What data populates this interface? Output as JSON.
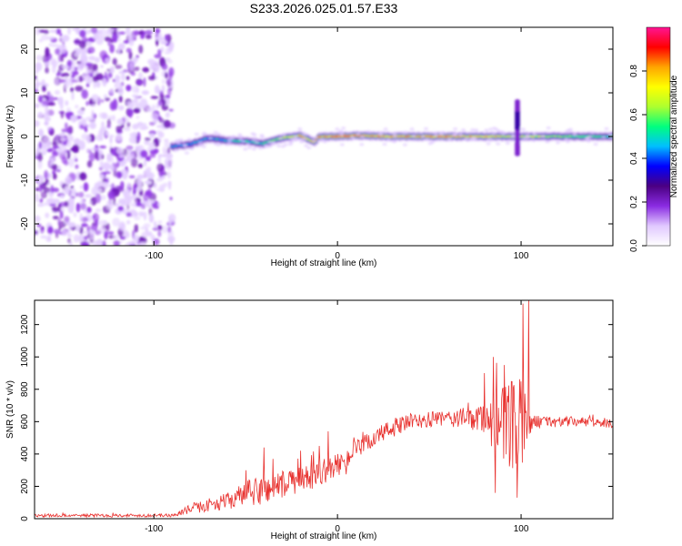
{
  "figure": {
    "title": "S233.2026.025.01.57.E33"
  },
  "chart_data": [
    {
      "type": "heatmap",
      "xlabel": "Height of straight line (km)",
      "ylabel": "Frequency (Hz)",
      "xlim": [
        -165,
        150
      ],
      "ylim": [
        -25,
        25
      ],
      "xticks": [
        -100,
        0,
        100
      ],
      "yticks": [
        -20,
        -10,
        0,
        10,
        20
      ],
      "colorbar": {
        "label": "Normalized spectral amplitude",
        "range": [
          0,
          1
        ],
        "ticks": [
          "0.0",
          "0.2",
          "0.4",
          "0.6",
          "0.8"
        ],
        "colors": [
          "#ffffff",
          "#e0c8ff",
          "#8a2be2",
          "#4b0082",
          "#0000ff",
          "#00bfff",
          "#00ff7f",
          "#adff2f",
          "#ffff00",
          "#ffa500",
          "#ff0000",
          "#ff1493"
        ]
      },
      "noise_region": {
        "x": [
          -165,
          -90
        ],
        "freq": [
          -25,
          25
        ],
        "amplitude": 0.15
      },
      "ridge": [
        {
          "x": -90,
          "freq": -2.3
        },
        {
          "x": -80,
          "freq": -1.8
        },
        {
          "x": -70,
          "freq": -0.4
        },
        {
          "x": -60,
          "freq": -0.9
        },
        {
          "x": -50,
          "freq": -1.1
        },
        {
          "x": -40,
          "freq": -1.6
        },
        {
          "x": -30,
          "freq": -0.4
        },
        {
          "x": -20,
          "freq": 0.2
        },
        {
          "x": -12,
          "freq": -1.3
        },
        {
          "x": -10,
          "freq": -0.1
        },
        {
          "x": 0,
          "freq": 0.0
        },
        {
          "x": 10,
          "freq": 0.2
        },
        {
          "x": 30,
          "freq": 0.0
        },
        {
          "x": 50,
          "freq": 0.0
        },
        {
          "x": 70,
          "freq": 0.0
        },
        {
          "x": 90,
          "freq": 0.0
        },
        {
          "x": 100,
          "freq": 0.0
        },
        {
          "x": 120,
          "freq": 0.0
        },
        {
          "x": 150,
          "freq": 0.0
        }
      ],
      "ridge_amplitude": [
        {
          "x": -90,
          "value": 0.45
        },
        {
          "x": -60,
          "value": 0.5
        },
        {
          "x": -40,
          "value": 0.55
        },
        {
          "x": -20,
          "value": 0.8
        },
        {
          "x": 0,
          "value": 0.9
        },
        {
          "x": 30,
          "value": 0.85
        },
        {
          "x": 60,
          "value": 0.85
        },
        {
          "x": 100,
          "value": 0.75
        },
        {
          "x": 130,
          "value": 0.6
        },
        {
          "x": 150,
          "value": 0.55
        }
      ],
      "burst": {
        "x": 98,
        "freq": 8,
        "amplitude": 0.3
      }
    },
    {
      "type": "line",
      "xlabel": "Height of straight line (km)",
      "ylabel": "SNR (10 * v/v)",
      "xlim": [
        -165,
        150
      ],
      "ylim": [
        0,
        1350
      ],
      "xticks": [
        -100,
        0,
        100
      ],
      "yticks": [
        0,
        200,
        400,
        600,
        800,
        1000,
        1200
      ],
      "series": [
        {
          "color": "#e8322f",
          "envelope": [
            {
              "x": -165,
              "y": 20,
              "amp": 10
            },
            {
              "x": -90,
              "y": 20,
              "amp": 10
            },
            {
              "x": -80,
              "y": 60,
              "amp": 30
            },
            {
              "x": -60,
              "y": 110,
              "amp": 50
            },
            {
              "x": -50,
              "y": 150,
              "amp": 80
            },
            {
              "x": -40,
              "y": 180,
              "amp": 100
            },
            {
              "x": -30,
              "y": 210,
              "amp": 90
            },
            {
              "x": -20,
              "y": 240,
              "amp": 80
            },
            {
              "x": -10,
              "y": 280,
              "amp": 80
            },
            {
              "x": 0,
              "y": 330,
              "amp": 70
            },
            {
              "x": 10,
              "y": 420,
              "amp": 60
            },
            {
              "x": 20,
              "y": 500,
              "amp": 60
            },
            {
              "x": 30,
              "y": 560,
              "amp": 60
            },
            {
              "x": 40,
              "y": 600,
              "amp": 50
            },
            {
              "x": 60,
              "y": 620,
              "amp": 50
            },
            {
              "x": 80,
              "y": 620,
              "amp": 90
            },
            {
              "x": 90,
              "y": 560,
              "amp": 260
            },
            {
              "x": 100,
              "y": 560,
              "amp": 320
            },
            {
              "x": 106,
              "y": 600,
              "amp": 40
            },
            {
              "x": 130,
              "y": 600,
              "amp": 30
            },
            {
              "x": 150,
              "y": 590,
              "amp": 30
            }
          ],
          "spikes": [
            {
              "x": -50,
              "y": 300
            },
            {
              "x": -40,
              "y": 440
            },
            {
              "x": -35,
              "y": 370
            },
            {
              "x": -20,
              "y": 420
            },
            {
              "x": -10,
              "y": 450
            },
            {
              "x": -5,
              "y": 540
            },
            {
              "x": 80,
              "y": 900
            },
            {
              "x": 85,
              "y": 1000
            },
            {
              "x": 91,
              "y": 950
            },
            {
              "x": 101,
              "y": 1330
            },
            {
              "x": 104,
              "y": 1350
            },
            {
              "x": 98,
              "y": 130
            },
            {
              "x": 86,
              "y": 160
            }
          ]
        }
      ]
    }
  ]
}
